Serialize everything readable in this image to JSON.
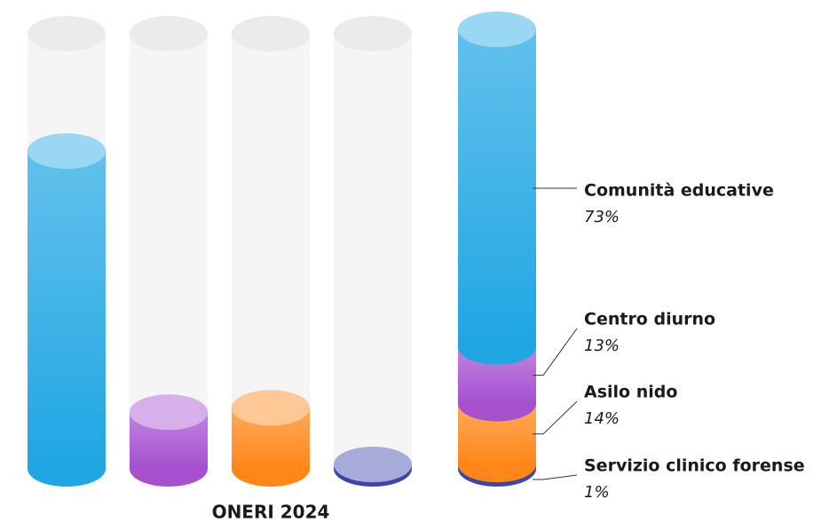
{
  "chart_data": {
    "type": "cylinder",
    "title": "ONERI 2024",
    "categories": [
      "Comunità educative",
      "Centro diurno",
      "Asilo nido",
      "Servizio clinico forense"
    ],
    "values": [
      73,
      13,
      14,
      1
    ],
    "value_labels": [
      "73%",
      "13%",
      "14%",
      "1%"
    ],
    "colors": [
      "#1fa6e3",
      "#a650d0",
      "#ff8618",
      "#3c46aa"
    ],
    "ylim": [
      0,
      100
    ]
  }
}
